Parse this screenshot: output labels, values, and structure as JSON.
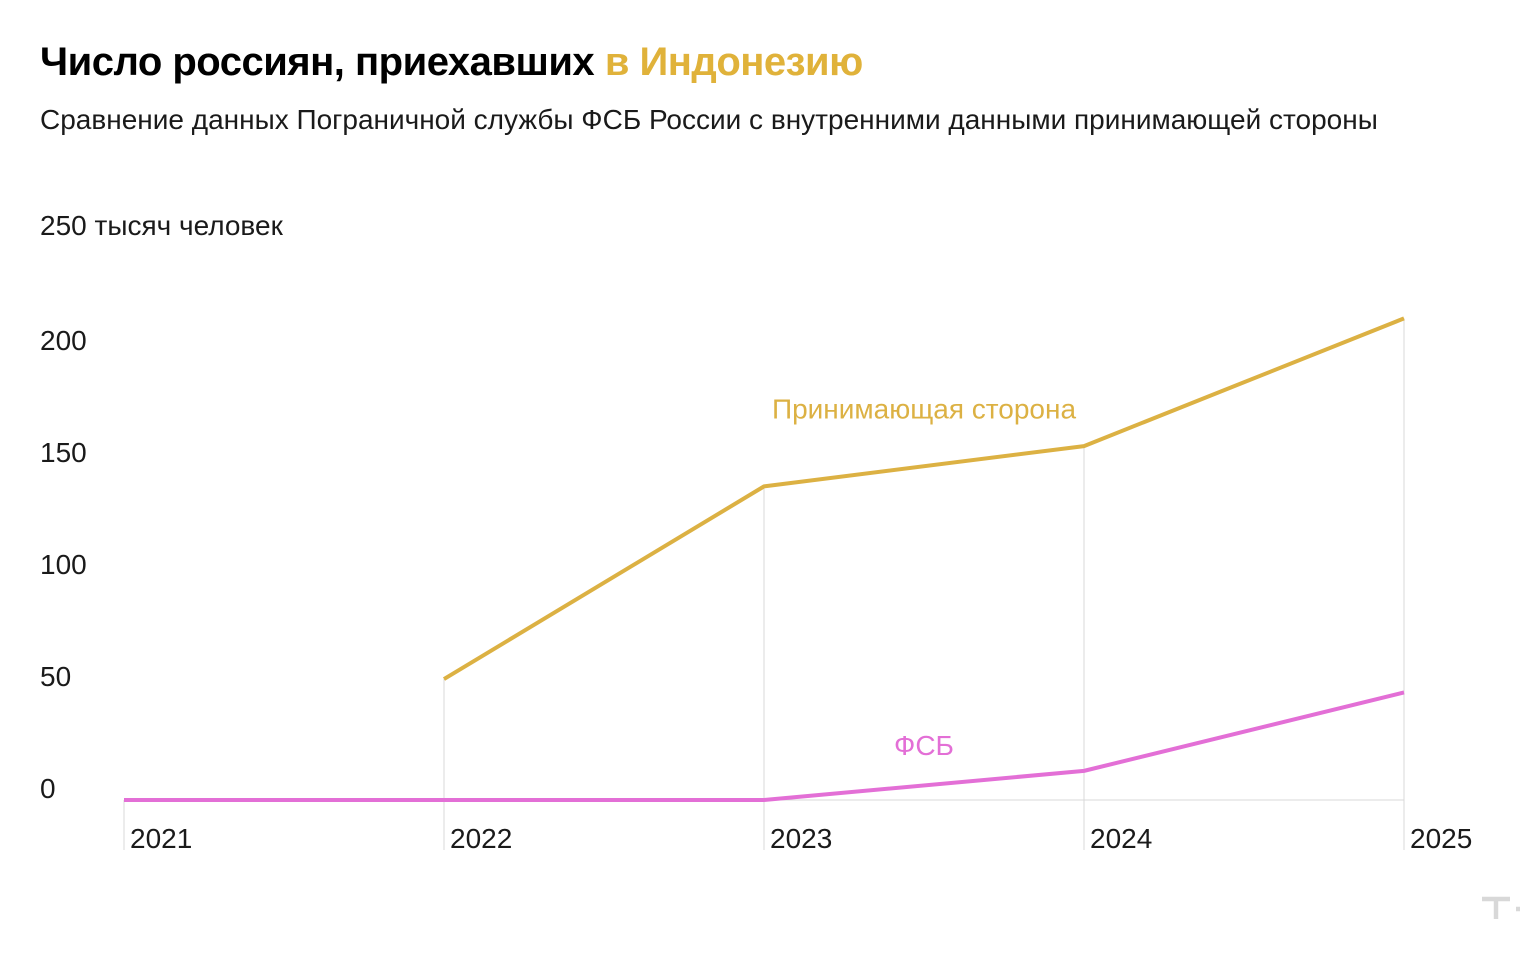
{
  "header": {
    "title_main": "Число россиян, приехавших",
    "title_accent": "в Индонезию",
    "subtitle": "Сравнение данных Пограничной службы ФСБ России с внутренними данными принимающей стороны",
    "unit_label": "250 тысяч человек"
  },
  "brand": {
    "logo_text": "т—ж",
    "logo_icon": "tzh-logo-icon"
  },
  "colors": {
    "accent": "#e0b23a",
    "host_line": "#dcb143",
    "fsb_line": "#e36fd6",
    "grid": "#d9d9d9"
  },
  "chart_data": {
    "type": "line",
    "title": "Число россиян, приехавших в Индонезию",
    "ylabel": "250 тысяч человек",
    "ylim": [
      0,
      250
    ],
    "yticks": [
      "0",
      "50",
      "100",
      "150",
      "200"
    ],
    "grid": "vertical",
    "x": [
      "2021",
      "2022",
      "2023",
      "2024",
      "2025"
    ],
    "series": [
      {
        "name": "Принимающая сторона",
        "values": [
          null,
          54,
          140,
          158,
          215
        ]
      },
      {
        "name": "ФСБ",
        "values": [
          0,
          0,
          0,
          13,
          48
        ]
      }
    ]
  }
}
